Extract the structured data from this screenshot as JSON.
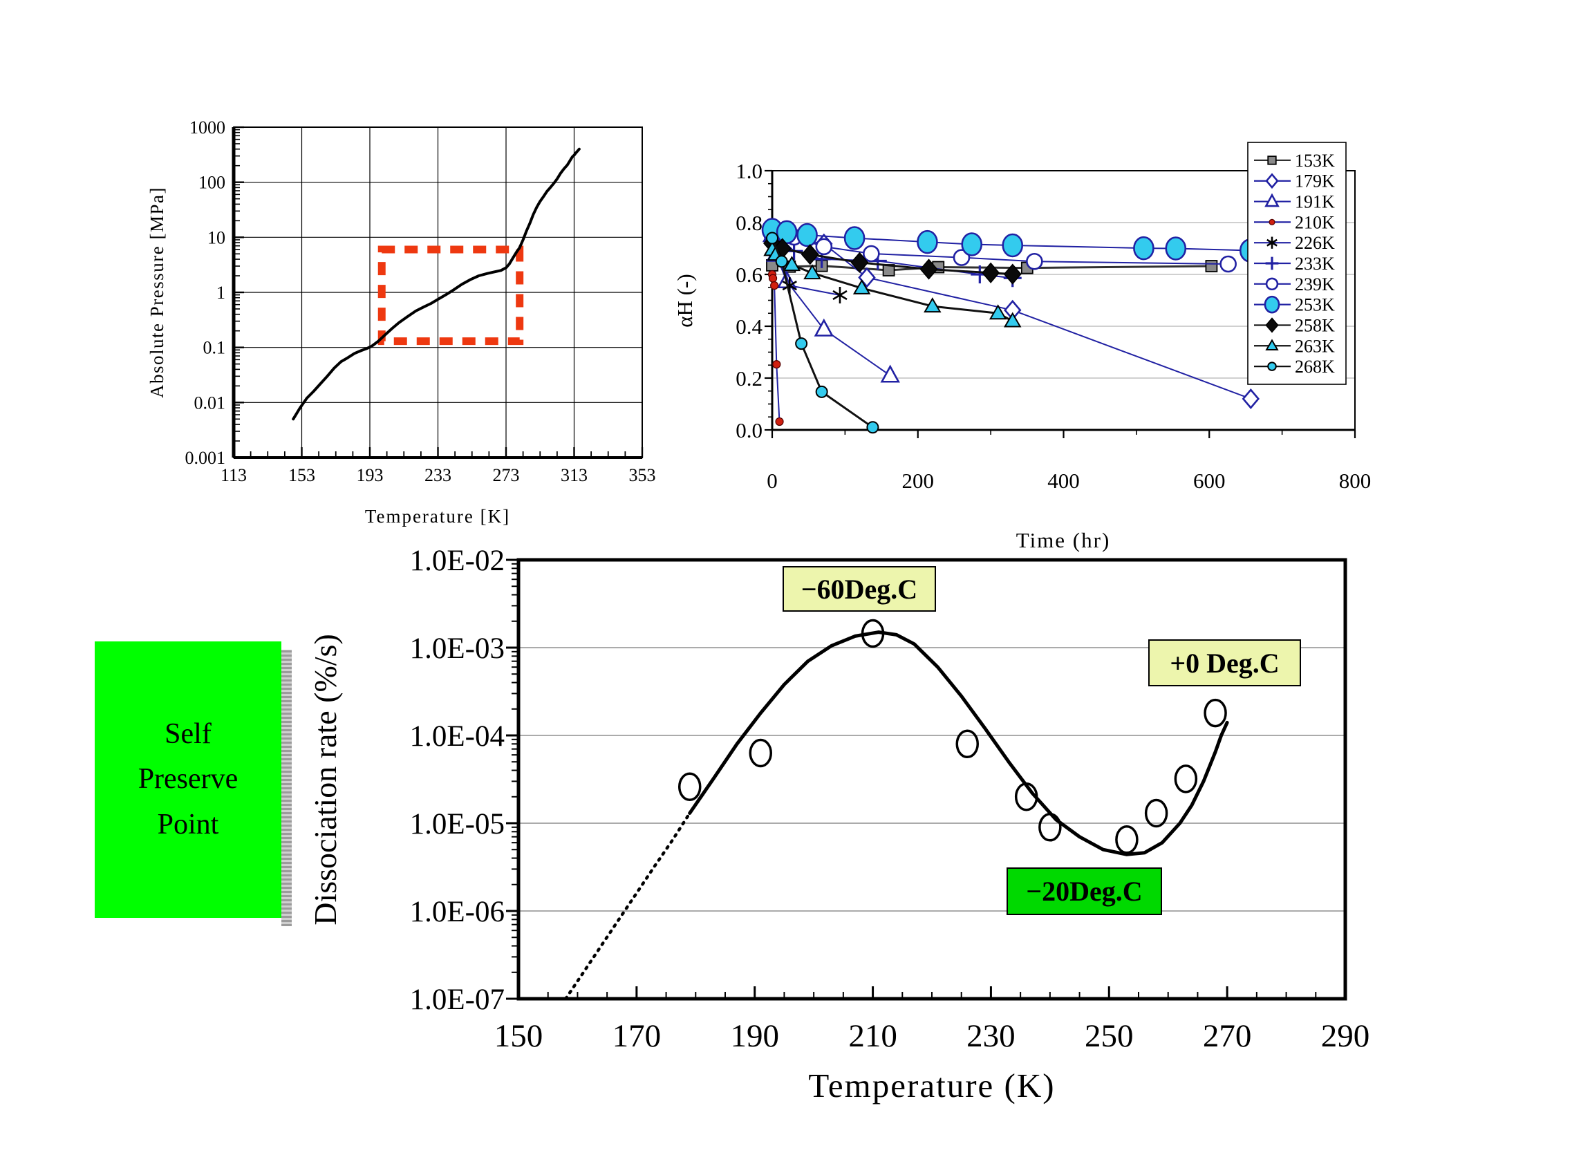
{
  "side_label": {
    "lines": [
      "Self",
      "Preserve",
      "Point"
    ],
    "bg": "#00ff00",
    "shadow": "#9b9b9b"
  },
  "chart_data": [
    {
      "id": "pressure",
      "type": "line",
      "title": "",
      "xlabel": "Temperature [K]",
      "ylabel": "Absolute Pressure [MPa]",
      "x_ticks": [
        113,
        153,
        193,
        233,
        273,
        313,
        353
      ],
      "y_ticks": [
        "1000",
        "100",
        "10",
        "1",
        "0.1",
        "0.01",
        "0.001"
      ],
      "x_range": [
        113,
        353
      ],
      "y_log_range": [
        -3,
        3
      ],
      "grid": "on",
      "curve_name": "hydrate-equilibrium-line",
      "curve": [
        [
          148,
          0.005
        ],
        [
          152,
          0.008
        ],
        [
          156,
          0.012
        ],
        [
          160,
          0.016
        ],
        [
          164,
          0.022
        ],
        [
          168,
          0.03
        ],
        [
          172,
          0.042
        ],
        [
          176,
          0.055
        ],
        [
          180,
          0.065
        ],
        [
          184,
          0.078
        ],
        [
          188,
          0.088
        ],
        [
          191,
          0.095
        ],
        [
          194,
          0.105
        ],
        [
          198,
          0.13
        ],
        [
          202,
          0.17
        ],
        [
          206,
          0.22
        ],
        [
          210,
          0.28
        ],
        [
          215,
          0.36
        ],
        [
          220,
          0.46
        ],
        [
          225,
          0.55
        ],
        [
          229,
          0.63
        ],
        [
          234,
          0.78
        ],
        [
          238,
          0.92
        ],
        [
          242,
          1.1
        ],
        [
          247,
          1.4
        ],
        [
          252,
          1.7
        ],
        [
          257,
          2.0
        ],
        [
          262,
          2.2
        ],
        [
          266,
          2.35
        ],
        [
          270,
          2.5
        ],
        [
          273,
          2.8
        ],
        [
          275,
          3.3
        ],
        [
          277,
          4.2
        ],
        [
          279,
          5.3
        ],
        [
          281,
          6.5
        ],
        [
          283,
          9
        ],
        [
          285,
          13
        ],
        [
          287,
          18
        ],
        [
          289,
          26
        ],
        [
          291,
          35
        ],
        [
          293,
          45
        ],
        [
          295,
          55
        ],
        [
          297,
          68
        ],
        [
          299,
          80
        ],
        [
          301,
          95
        ],
        [
          303,
          115
        ],
        [
          305,
          145
        ],
        [
          307,
          175
        ],
        [
          309,
          205
        ],
        [
          310,
          230
        ],
        [
          311,
          260
        ],
        [
          312,
          290
        ],
        [
          313,
          310
        ],
        [
          314,
          340
        ],
        [
          316,
          400
        ]
      ],
      "highlight_box": {
        "x": [
          200,
          281
        ],
        "y": [
          0.13,
          6.0
        ],
        "color": "#ee3810"
      }
    },
    {
      "id": "alpha",
      "type": "line",
      "title": "",
      "xlabel": "Time (hr)",
      "ylabel": "αH (-)",
      "x_ticks": [
        0,
        200,
        400,
        600,
        800
      ],
      "y_tick_labels": [
        "1.0",
        "0.8",
        "0.6",
        "0.4",
        "0.2",
        "0.0"
      ],
      "x_range": [
        0,
        800
      ],
      "y_range": [
        0,
        1
      ],
      "grid": "horizontal-light",
      "legend_position": "right-top",
      "series": [
        {
          "name": "153K",
          "marker": "square",
          "line_color": "#303030",
          "points": [
            [
              0,
              0.635
            ],
            [
              24,
              0.63
            ],
            [
              68,
              0.633
            ],
            [
              160,
              0.616
            ],
            [
              228,
              0.628
            ],
            [
              350,
              0.625
            ],
            [
              603,
              0.632
            ]
          ]
        },
        {
          "name": "179K",
          "marker": "diamond-open",
          "line_color": "#2121a3",
          "points": [
            [
              0,
              0.775
            ],
            [
              7,
              0.748
            ],
            [
              71,
              0.718
            ],
            [
              130,
              0.588
            ],
            [
              330,
              0.462
            ],
            [
              657,
              0.12
            ]
          ]
        },
        {
          "name": "191K",
          "marker": "triangle-open",
          "line_color": "#2121a3",
          "points": [
            [
              0,
              0.752
            ],
            [
              5,
              0.676
            ],
            [
              20,
              0.574
            ],
            [
              71,
              0.388
            ],
            [
              162,
              0.21
            ]
          ]
        },
        {
          "name": "210K",
          "marker": "dot",
          "line_color": "#2121a3",
          "points": [
            [
              0,
              0.6
            ],
            [
              1,
              0.585
            ],
            [
              3,
              0.557
            ],
            [
              6,
              0.253
            ],
            [
              10,
              0.032
            ]
          ]
        },
        {
          "name": "226K",
          "marker": "asterisk",
          "line_color": "#2121a3",
          "points": [
            [
              0,
              0.784
            ],
            [
              5,
              0.72
            ],
            [
              24,
              0.557
            ],
            [
              93,
              0.52
            ]
          ]
        },
        {
          "name": "233K",
          "marker": "plus",
          "line_color": "#2121a3",
          "points": [
            [
              0,
              0.77
            ],
            [
              30,
              0.69
            ],
            [
              68,
              0.659
            ],
            [
              145,
              0.652
            ],
            [
              285,
              0.6
            ],
            [
              330,
              0.586
            ]
          ]
        },
        {
          "name": "239K",
          "marker": "circle-open",
          "line_color": "#2121a3",
          "points": [
            [
              0,
              0.75
            ],
            [
              30,
              0.744
            ],
            [
              71,
              0.707
            ],
            [
              136,
              0.68
            ],
            [
              260,
              0.665
            ],
            [
              360,
              0.65
            ],
            [
              626,
              0.64
            ]
          ]
        },
        {
          "name": "253K",
          "marker": "circle-big",
          "line_color": "#2121a3",
          "points": [
            [
              0,
              0.772
            ],
            [
              20,
              0.763
            ],
            [
              48,
              0.752
            ],
            [
              113,
              0.74
            ],
            [
              213,
              0.725
            ],
            [
              274,
              0.716
            ],
            [
              330,
              0.712
            ],
            [
              510,
              0.701
            ],
            [
              554,
              0.7
            ],
            [
              656,
              0.692
            ]
          ]
        },
        {
          "name": "258K",
          "marker": "diamond-fill",
          "line_color": "#101010",
          "points": [
            [
              0,
              0.72
            ],
            [
              14,
              0.7
            ],
            [
              52,
              0.677
            ],
            [
              120,
              0.646
            ],
            [
              215,
              0.62
            ],
            [
              300,
              0.606
            ],
            [
              330,
              0.601
            ]
          ]
        },
        {
          "name": "263K",
          "marker": "triangle-fill",
          "line_color": "#101010",
          "points": [
            [
              0,
              0.695
            ],
            [
              5,
              0.677
            ],
            [
              27,
              0.637
            ],
            [
              55,
              0.605
            ],
            [
              123,
              0.547
            ],
            [
              220,
              0.477
            ],
            [
              310,
              0.45
            ],
            [
              330,
              0.42
            ]
          ]
        },
        {
          "name": "268K",
          "marker": "circle-small",
          "line_color": "#101010",
          "points": [
            [
              0,
              0.74
            ],
            [
              13,
              0.65
            ],
            [
              40,
              0.333
            ],
            [
              68,
              0.147
            ],
            [
              138,
              0.01
            ]
          ]
        }
      ],
      "colors": {
        "blue": "#2121a3",
        "cyan": "#33cbee",
        "gray": "#8a8a8a",
        "red": "#d02010"
      }
    },
    {
      "id": "dissociation",
      "type": "scatter",
      "title": "",
      "xlabel": "Temperature (K)",
      "ylabel": "Dissociation rate (%/s)",
      "x_ticks": [
        150,
        170,
        190,
        210,
        230,
        250,
        270,
        290
      ],
      "y_ticks": [
        "1.0E-02",
        "1.0E-03",
        "1.0E-04",
        "1.0E-05",
        "1.0E-06",
        "1.0E-07"
      ],
      "x_range": [
        150,
        290
      ],
      "y_log_range": [
        -7,
        -2
      ],
      "grid": "horizontal-light",
      "points": [
        [
          179,
          2.6e-05
        ],
        [
          191,
          6.3e-05
        ],
        [
          210,
          0.00145
        ],
        [
          226,
          8e-05
        ],
        [
          236,
          2e-05
        ],
        [
          240,
          9e-06
        ],
        [
          253,
          6.5e-06
        ],
        [
          258,
          1.3e-05
        ],
        [
          263,
          3.2e-05
        ],
        [
          268,
          0.00018
        ]
      ],
      "curve_dotted": [
        [
          158,
          1e-07
        ],
        [
          161,
          2e-07
        ],
        [
          164,
          4e-07
        ],
        [
          167,
          8e-07
        ],
        [
          170,
          1.6e-06
        ],
        [
          173,
          3.2e-06
        ],
        [
          176,
          6.3e-06
        ],
        [
          179,
          1.3e-05
        ]
      ],
      "curve_solid": [
        [
          179,
          1.3e-05
        ],
        [
          183,
          3.2e-05
        ],
        [
          187,
          8e-05
        ],
        [
          191,
          0.00018
        ],
        [
          195,
          0.00038
        ],
        [
          199,
          0.0007
        ],
        [
          203,
          0.00105
        ],
        [
          207,
          0.00135
        ],
        [
          211,
          0.0015
        ],
        [
          214,
          0.0014
        ],
        [
          217,
          0.0011
        ],
        [
          221,
          0.0006
        ],
        [
          225,
          0.00028
        ],
        [
          229,
          0.00012
        ],
        [
          233,
          5e-05
        ],
        [
          237,
          2.2e-05
        ],
        [
          241,
          1.1e-05
        ],
        [
          245,
          7e-06
        ],
        [
          249,
          5e-06
        ],
        [
          253,
          4.4e-06
        ],
        [
          256,
          4.6e-06
        ],
        [
          259,
          6e-06
        ],
        [
          262,
          1e-05
        ],
        [
          264,
          1.6e-05
        ],
        [
          266,
          3e-05
        ],
        [
          268,
          6.5e-05
        ],
        [
          269,
          0.0001
        ],
        [
          270,
          0.00014
        ]
      ],
      "annotations": [
        {
          "text": "−60Deg.C",
          "bg": "#edf5ad"
        },
        {
          "text": "+0 Deg.C",
          "bg": "#edf5ad"
        },
        {
          "text": "−20Deg.C",
          "bg": "#00d900"
        }
      ]
    }
  ]
}
